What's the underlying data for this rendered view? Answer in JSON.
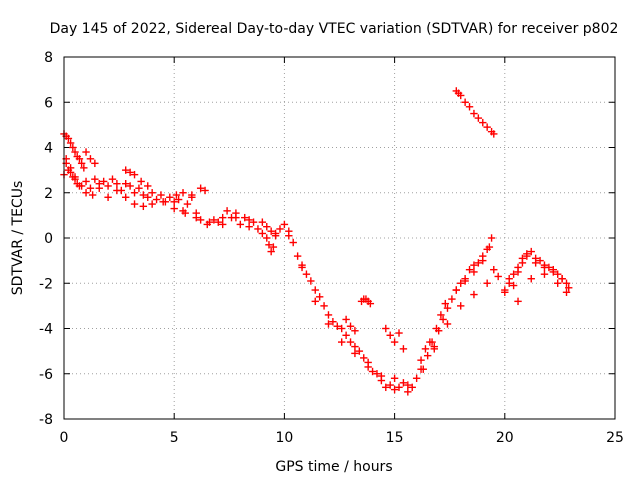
{
  "chart_data": {
    "type": "scatter",
    "title": "Day 145 of 2022, Sidereal Day-to-day VTEC variation (SDTVAR) for receiver p802",
    "xlabel": "GPS time / hours",
    "ylabel": "SDTVAR / TECUs",
    "xlim": [
      0,
      25
    ],
    "ylim": [
      -8,
      8
    ],
    "xticks": [
      0,
      5,
      10,
      15,
      20,
      25
    ],
    "yticks": [
      -8,
      -6,
      -4,
      -2,
      0,
      2,
      4,
      6,
      8
    ],
    "xtick_labels": [
      "0",
      "5",
      "10",
      "15",
      "20",
      "25"
    ],
    "ytick_labels": [
      "-8",
      "-6",
      "-4",
      "-2",
      "0",
      "2",
      "4",
      "6",
      "8"
    ],
    "grid": true,
    "marker": "+",
    "color": "#ff0000",
    "series": [
      {
        "name": "p802",
        "x": [
          0.0,
          0.1,
          0.2,
          0.3,
          0.4,
          0.5,
          0.6,
          0.8,
          1.0,
          1.2,
          1.4,
          1.6,
          1.8,
          2.0,
          2.2,
          2.4,
          2.6,
          2.8,
          3.0,
          3.2,
          3.4,
          3.6,
          3.8,
          4.0,
          4.2,
          4.4,
          4.6,
          4.8,
          5.0,
          5.2,
          5.4,
          5.6,
          5.8,
          6.0,
          6.2,
          6.5,
          6.8,
          7.0,
          7.2,
          7.4,
          7.6,
          7.8,
          8.0,
          8.2,
          8.4,
          8.6,
          8.8,
          9.0,
          9.2,
          9.4,
          9.6,
          9.8,
          10.0,
          10.2,
          10.4,
          10.6,
          10.8,
          11.0,
          11.2,
          11.4,
          11.6,
          11.8,
          12.0,
          12.2,
          12.4,
          12.6,
          12.8,
          13.0,
          13.2,
          13.4,
          13.6,
          13.8,
          14.0,
          14.2,
          14.4,
          14.6,
          14.8,
          15.0,
          15.2,
          15.4,
          15.6,
          15.8,
          16.0,
          16.2,
          16.4,
          16.6,
          16.8,
          17.0,
          17.2,
          17.4,
          17.6,
          17.8,
          18.0,
          18.2,
          18.4,
          18.6,
          18.8,
          19.0,
          19.2,
          19.4,
          19.5,
          19.7,
          20.0,
          20.2,
          20.4,
          20.6,
          20.8,
          21.0,
          21.2,
          21.4,
          21.6,
          21.8,
          22.0,
          22.2,
          22.4,
          22.6,
          22.8,
          22.9,
          0.1,
          0.3,
          0.5,
          0.7,
          1.0,
          1.3,
          1.6,
          2.0,
          2.4,
          2.8,
          3.2,
          3.6,
          4.0,
          4.5,
          5.0,
          5.5,
          6.0,
          6.6,
          7.2,
          7.8,
          8.4,
          9.0,
          9.6,
          10.2,
          10.8,
          11.4,
          12.0,
          12.6,
          13.2,
          13.8,
          14.4,
          15.0,
          15.6,
          16.2,
          16.8,
          17.4,
          18.0,
          18.6,
          19.2,
          20.0,
          20.6,
          21.2,
          21.8,
          22.4,
          22.8,
          0.0,
          0.1,
          0.2,
          0.3,
          0.4,
          0.5,
          0.6,
          0.7,
          0.8,
          0.9,
          17.8,
          17.9,
          18.0,
          18.2,
          18.4,
          18.6,
          18.8,
          19.0,
          19.2,
          19.4,
          19.5,
          13.5,
          13.6,
          13.7,
          13.8,
          13.9,
          9.2,
          9.3,
          9.4,
          9.5,
          2.8,
          3.0,
          3.2,
          3.5,
          3.8,
          1.0,
          1.2,
          1.4,
          5.1,
          5.4,
          5.8,
          6.2,
          6.4,
          12.8,
          13.0,
          13.2,
          14.6,
          14.8,
          15.0,
          15.2,
          15.4,
          16.3,
          16.5,
          16.7,
          16.9,
          17.1,
          17.3,
          17.8,
          18.2,
          18.6,
          19.0,
          19.3,
          20.2,
          20.4,
          20.6,
          20.8,
          21.0,
          21.4,
          21.8,
          22.2,
          22.6
        ],
        "y": [
          2.8,
          3.3,
          3.0,
          2.9,
          2.7,
          2.6,
          2.4,
          2.3,
          2.5,
          2.2,
          2.6,
          2.4,
          2.5,
          2.3,
          2.6,
          2.4,
          2.1,
          2.4,
          2.3,
          2.0,
          2.2,
          1.9,
          1.8,
          2.0,
          1.7,
          1.9,
          1.6,
          1.8,
          1.6,
          1.7,
          1.2,
          1.5,
          1.8,
          1.1,
          0.8,
          0.6,
          0.8,
          0.7,
          0.9,
          1.2,
          0.9,
          1.1,
          0.6,
          0.9,
          0.8,
          0.7,
          0.4,
          0.7,
          0.5,
          0.3,
          0.2,
          0.4,
          0.6,
          0.3,
          -0.2,
          -0.8,
          -1.2,
          -1.6,
          -1.9,
          -2.3,
          -2.6,
          -3.0,
          -3.4,
          -3.7,
          -3.9,
          -4.0,
          -4.3,
          -4.6,
          -4.8,
          -5.0,
          -5.3,
          -5.5,
          -5.9,
          -6.0,
          -6.3,
          -6.6,
          -6.5,
          -6.7,
          -6.6,
          -6.4,
          -6.8,
          -6.6,
          -6.2,
          -5.4,
          -4.9,
          -4.6,
          -4.8,
          -4.1,
          -3.6,
          -3.1,
          -2.7,
          -2.3,
          -2.0,
          -1.8,
          -1.4,
          -1.2,
          -1.1,
          -0.8,
          -0.5,
          0.0,
          -1.4,
          -1.7,
          -2.3,
          -2.0,
          -1.6,
          -1.3,
          -1.1,
          -0.7,
          -0.6,
          -0.9,
          -1.0,
          -1.2,
          -1.3,
          -1.4,
          -1.6,
          -1.8,
          -2.0,
          -2.2,
          3.5,
          3.1,
          2.7,
          2.3,
          2.0,
          1.9,
          2.2,
          1.8,
          2.1,
          1.8,
          1.5,
          1.4,
          1.5,
          1.6,
          1.3,
          1.1,
          0.9,
          0.7,
          0.6,
          0.9,
          0.5,
          0.2,
          0.1,
          0.1,
          -1.3,
          -2.8,
          -3.8,
          -4.6,
          -5.1,
          -5.7,
          -6.1,
          -6.2,
          -6.5,
          -5.8,
          -4.9,
          -3.8,
          -3.0,
          -2.5,
          -2.0,
          -2.4,
          -2.8,
          -1.8,
          -1.6,
          -2.0,
          -2.4,
          4.6,
          4.5,
          4.4,
          4.2,
          4.0,
          3.8,
          3.6,
          3.5,
          3.3,
          3.1,
          6.5,
          6.4,
          6.3,
          6.0,
          5.8,
          5.5,
          5.3,
          5.1,
          4.9,
          4.7,
          4.6,
          -2.8,
          -2.7,
          -2.7,
          -2.8,
          -2.9,
          0.0,
          -0.3,
          -0.6,
          -0.4,
          3.0,
          2.9,
          2.8,
          2.5,
          2.3,
          3.8,
          3.5,
          3.3,
          1.9,
          2.0,
          1.9,
          2.2,
          2.1,
          -3.6,
          -3.9,
          -4.1,
          -4.0,
          -4.3,
          -4.6,
          -4.2,
          -4.9,
          -5.8,
          -5.2,
          -4.6,
          -4.0,
          -3.4,
          -2.9,
          -2.3,
          -1.9,
          -1.5,
          -1.0,
          -0.4,
          -1.8,
          -2.1,
          -1.5,
          -0.9,
          -0.8,
          -1.1,
          -1.3,
          -1.5,
          -1.8
        ]
      }
    ]
  }
}
